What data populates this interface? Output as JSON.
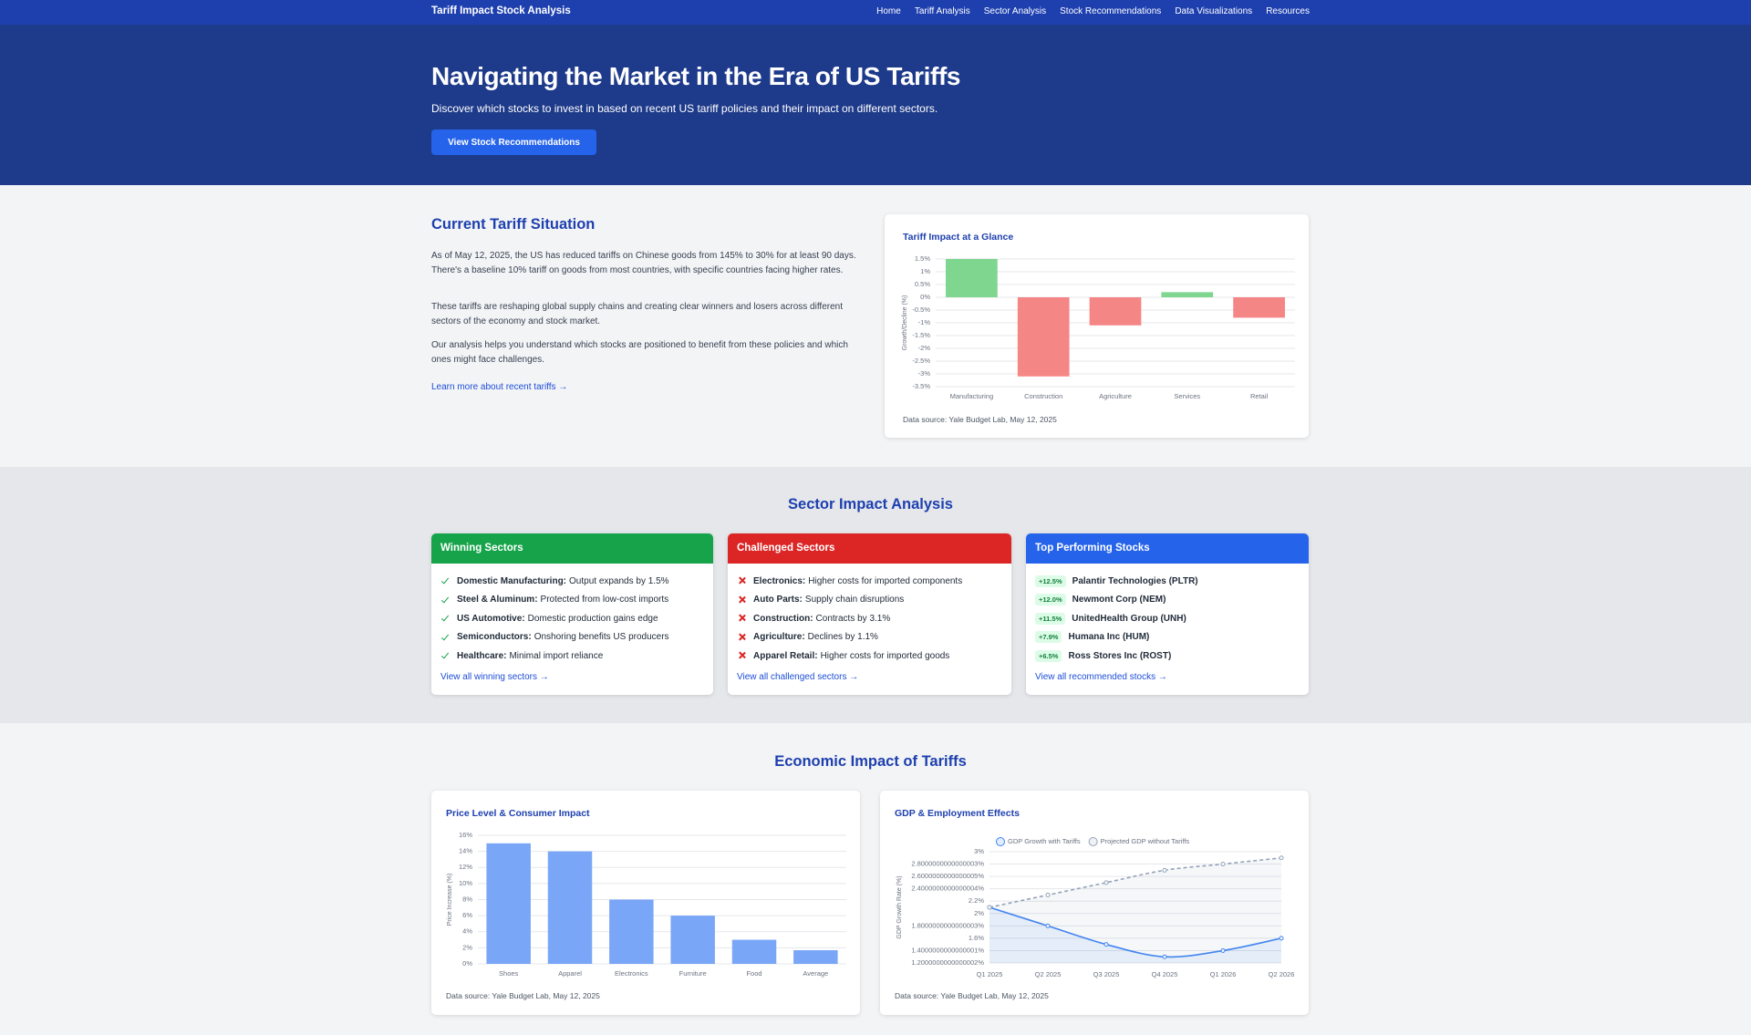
{
  "nav": {
    "brand": "Tariff Impact Stock Analysis",
    "links": [
      "Home",
      "Tariff Analysis",
      "Sector Analysis",
      "Stock Recommendations",
      "Data Visualizations",
      "Resources"
    ]
  },
  "hero": {
    "title": "Navigating the Market in the Era of US Tariffs",
    "subtitle": "Discover which stocks to invest in based on recent US tariff policies and their impact on different sectors.",
    "button": "View Stock Recommendations"
  },
  "situation": {
    "heading": "Current Tariff Situation",
    "paragraphs": [
      "As of May 12, 2025, the US has reduced tariffs on Chinese goods from 145% to 30% for at least 90 days. There's a baseline 10% tariff on goods from most countries, with specific countries facing higher rates.",
      "These tariffs are reshaping global supply chains and creating clear winners and losers across different sectors of the economy and stock market.",
      "Our analysis helps you understand which stocks are positioned to benefit from these policies and which ones might face challenges."
    ],
    "link": "Learn more about recent tariffs →"
  },
  "sectors": {
    "heading": "Sector Impact Analysis",
    "cards": [
      {
        "title": "Winning Sectors",
        "items": [
          {
            "label": "Domestic Manufacturing:",
            "text": "Output expands by 1.5%"
          },
          {
            "label": "Steel & Aluminum:",
            "text": "Protected from low-cost imports"
          },
          {
            "label": "US Automotive:",
            "text": "Domestic production gains edge"
          },
          {
            "label": "Semiconductors:",
            "text": "Onshoring benefits US producers"
          },
          {
            "label": "Healthcare:",
            "text": "Minimal import reliance"
          }
        ],
        "link": "View all winning sectors →"
      },
      {
        "title": "Challenged Sectors",
        "items": [
          {
            "label": "Electronics:",
            "text": "Higher costs for imported components"
          },
          {
            "label": "Auto Parts:",
            "text": "Supply chain disruptions"
          },
          {
            "label": "Construction:",
            "text": "Contracts by 3.1%"
          },
          {
            "label": "Agriculture:",
            "text": "Declines by 1.1%"
          },
          {
            "label": "Apparel Retail:",
            "text": "Higher costs for imported goods"
          }
        ],
        "link": "View all challenged sectors →"
      },
      {
        "title": "Top Performing Stocks",
        "stocks": [
          {
            "change": "+12.5%",
            "name": "Palantir Technologies (PLTR)"
          },
          {
            "change": "+12.0%",
            "name": "Newmont Corp (NEM)"
          },
          {
            "change": "+11.5%",
            "name": "UnitedHealth Group (UNH)"
          },
          {
            "change": "+7.9%",
            "name": "Humana Inc (HUM)"
          },
          {
            "change": "+6.5%",
            "name": "Ross Stores Inc (ROST)"
          }
        ],
        "link": "View all recommended stocks →"
      }
    ]
  },
  "economic": {
    "heading": "Economic Impact of Tariffs"
  },
  "chart_data": [
    {
      "type": "bar",
      "title": "Tariff Impact at a Glance",
      "y_label": "Growth/Decline (%)",
      "categories": [
        "Manufacturing",
        "Construction",
        "Agriculture",
        "Services",
        "Retail"
      ],
      "values": [
        1.5,
        -3.1,
        -1.1,
        0.2,
        -0.8
      ],
      "colors": [
        "#7ed68f",
        "#f58686",
        "#f58686",
        "#7ed68f",
        "#f58686"
      ],
      "ylim": [
        -3.5,
        1.5
      ],
      "yticks": [
        {
          "value": -3.5,
          "label": "-3.5%"
        },
        {
          "value": -3,
          "label": "-3%"
        },
        {
          "value": -2.5,
          "label": "-2.5%"
        },
        {
          "value": -2,
          "label": "-2%"
        },
        {
          "value": -1.5,
          "label": "-1.5%"
        },
        {
          "value": -1,
          "label": "-1%"
        },
        {
          "value": -0.5,
          "label": "-0.5%"
        },
        {
          "value": 0,
          "label": "0%"
        },
        {
          "value": 0.5,
          "label": "0.5%"
        },
        {
          "value": 1,
          "label": "1%"
        },
        {
          "value": 1.5,
          "label": "1.5%"
        }
      ],
      "grid": true,
      "source": "Data source: Yale Budget Lab, May 12, 2025"
    },
    {
      "type": "bar",
      "title": "Price Level & Consumer Impact",
      "y_label": "Price Increase (%)",
      "categories": [
        "Shoes",
        "Apparel",
        "Electronics",
        "Furniture",
        "Food",
        "Average"
      ],
      "values": [
        15,
        14,
        8,
        6,
        3,
        1.7
      ],
      "color": "#7aa6f7",
      "ylim": [
        0,
        16
      ],
      "yticks": [
        {
          "value": 0,
          "label": "0%"
        },
        {
          "value": 2,
          "label": "2%"
        },
        {
          "value": 4,
          "label": "4%"
        },
        {
          "value": 6,
          "label": "6%"
        },
        {
          "value": 8,
          "label": "8%"
        },
        {
          "value": 10,
          "label": "10%"
        },
        {
          "value": 12,
          "label": "12%"
        },
        {
          "value": 14,
          "label": "14%"
        },
        {
          "value": 16,
          "label": "16%"
        }
      ],
      "grid": true,
      "source": "Data source: Yale Budget Lab, May 12, 2025"
    },
    {
      "type": "line",
      "title": "GDP & Employment Effects",
      "y_label": "GDP Growth Rate (%)",
      "categories": [
        "Q1 2025",
        "Q2 2025",
        "Q3 2025",
        "Q4 2025",
        "Q1 2026",
        "Q2 2026"
      ],
      "series": [
        {
          "name": "GDP Growth with Tariffs",
          "color": "#3b82f6",
          "line_style": "solid",
          "fill": true,
          "values": [
            2.1,
            1.8,
            1.5,
            1.3,
            1.4,
            1.6
          ]
        },
        {
          "name": "Projected GDP without Tariffs",
          "color": "#94a3b8",
          "line_style": "dashed",
          "fill": true,
          "values": [
            2.1,
            2.3,
            2.5,
            2.7,
            2.8,
            2.9
          ]
        }
      ],
      "ylim": [
        1.2,
        3
      ],
      "yticks": [
        {
          "value": 1.2,
          "label": "1.2000000000000002%"
        },
        {
          "value": 1.4,
          "label": "1.4000000000000001%"
        },
        {
          "value": 1.6,
          "label": "1.6%"
        },
        {
          "value": 1.8,
          "label": "1.8000000000000003%"
        },
        {
          "value": 2,
          "label": "2%"
        },
        {
          "value": 2.2,
          "label": "2.2%"
        },
        {
          "value": 2.4,
          "label": "2.4000000000000004%"
        },
        {
          "value": 2.6,
          "label": "2.6000000000000005%"
        },
        {
          "value": 2.8,
          "label": "2.8000000000000003%"
        },
        {
          "value": 3,
          "label": "3%"
        }
      ],
      "grid": true,
      "legend": "top",
      "source": "Data source: Yale Budget Lab, May 12, 2025"
    }
  ]
}
